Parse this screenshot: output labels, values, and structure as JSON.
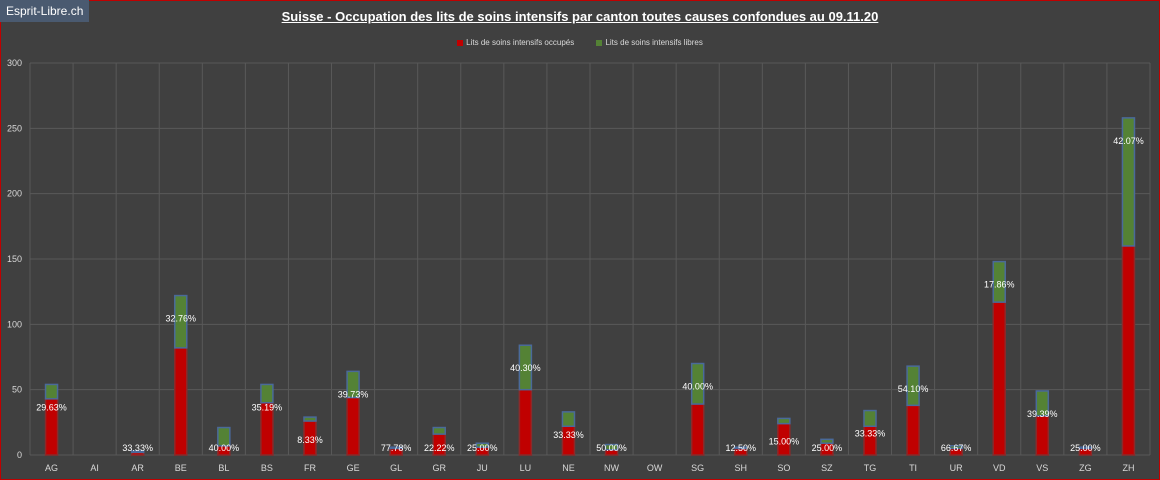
{
  "watermark": "Esprit-Libre.ch",
  "chart_data": {
    "type": "bar",
    "title": "Suisse - Occupation des lits de soins intensifs par canton toutes causes confondues au 09.11.20",
    "categories": [
      "AG",
      "AI",
      "AR",
      "BE",
      "BL",
      "BS",
      "FR",
      "GE",
      "GL",
      "GR",
      "JU",
      "LU",
      "NE",
      "NW",
      "OW",
      "SG",
      "SH",
      "SO",
      "SZ",
      "TG",
      "TI",
      "UR",
      "VD",
      "VS",
      "ZG",
      "ZH"
    ],
    "series": [
      {
        "name": "Lits de soins intensifs occupés",
        "color": "#c00000",
        "values": [
          43,
          0,
          2,
          82,
          7,
          40,
          26,
          44,
          5,
          16,
          6,
          50,
          22,
          4,
          0,
          39,
          5,
          24,
          9,
          22,
          38,
          5,
          117,
          30,
          5,
          160
        ]
      },
      {
        "name": "Lits de soins intensifs libres",
        "color": "#548235",
        "values": [
          11,
          0,
          1,
          40,
          14,
          14,
          3,
          20,
          1,
          5,
          3,
          34,
          11,
          4,
          0,
          31,
          1,
          4,
          3,
          12,
          30,
          2,
          31,
          19,
          1,
          98
        ]
      }
    ],
    "data_labels": [
      "29.63%",
      "",
      "33.33%",
      "32.76%",
      "40.00%",
      "35.19%",
      "8.33%",
      "39.73%",
      "77.78%",
      "22.22%",
      "25.00%",
      "40.30%",
      "33.33%",
      "50.00%",
      "",
      "40.00%",
      "12.50%",
      "15.00%",
      "25.00%",
      "33.33%",
      "54.10%",
      "66.67%",
      "17.86%",
      "39.39%",
      "25.00%",
      "42.07%"
    ],
    "ylim": [
      0,
      300
    ],
    "yticks": [
      0,
      50,
      100,
      150,
      200,
      250,
      300
    ],
    "grid": true,
    "legend_position": "top"
  }
}
